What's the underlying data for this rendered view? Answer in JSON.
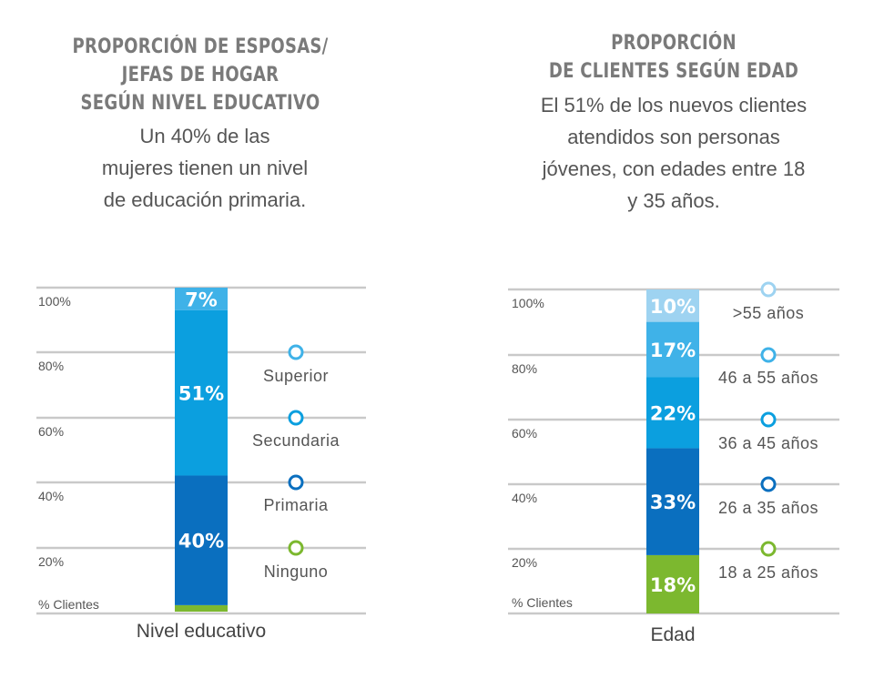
{
  "colors": {
    "grid": "#c9c9c9",
    "marker_fill": "#ffffff"
  },
  "chart_data": [
    {
      "type": "bar",
      "stacked": true,
      "title": "PROPORCIÓN DE ESPOSAS/\nJEFAS DE HOGAR\nSEGÚN NIVEL EDUCATIVO",
      "subtitle": "Un 40% de las\nmujeres tienen un nivel\nde educación primaria.",
      "xlabel": "Nivel educativo",
      "ylabel": "% Clientes",
      "ylim": [
        0,
        100
      ],
      "yticks": [
        "20%",
        "40%",
        "60%",
        "80%",
        "100%"
      ],
      "grid": true,
      "categories": [
        "Nivel educativo"
      ],
      "series": [
        {
          "name": "Ninguno",
          "values": [
            2
          ],
          "data_label": "",
          "color": "#7cb82f"
        },
        {
          "name": "Primaria",
          "values": [
            40
          ],
          "data_label": "40%",
          "color": "#0a6fbf"
        },
        {
          "name": "Secundaria",
          "values": [
            51
          ],
          "data_label": "51%",
          "color": "#0b9fdf"
        },
        {
          "name": "Superior",
          "values": [
            7
          ],
          "data_label": "7%",
          "color": "#3fb2e8"
        }
      ],
      "legend": [
        "Ninguno",
        "Primaria",
        "Secundaria",
        "Superior"
      ]
    },
    {
      "type": "bar",
      "stacked": true,
      "title": "PROPORCIÓN\nDE CLIENTES SEGÚN EDAD",
      "subtitle": "El 51% de los nuevos clientes\natendidos son personas\njóvenes, con edades entre 18\ny 35 años.",
      "xlabel": "Edad",
      "ylabel": "% Clientes",
      "ylim": [
        0,
        100
      ],
      "yticks": [
        "20%",
        "40%",
        "60%",
        "80%",
        "100%"
      ],
      "grid": true,
      "categories": [
        "Edad"
      ],
      "series": [
        {
          "name": "18 a 25 años",
          "values": [
            18
          ],
          "data_label": "18%",
          "color": "#7cb82f"
        },
        {
          "name": "26 a 35 años",
          "values": [
            33
          ],
          "data_label": "33%",
          "color": "#0a6fbf"
        },
        {
          "name": "36 a 45 años",
          "values": [
            22
          ],
          "data_label": "22%",
          "color": "#0b9fdf"
        },
        {
          "name": "46 a 55 años",
          "values": [
            17
          ],
          "data_label": "17%",
          "color": "#3fb2e8"
        },
        {
          "name": ">55 años",
          "values": [
            10
          ],
          "data_label": "10%",
          "color": "#9ed3f1"
        }
      ],
      "legend": [
        "18 a 25 años",
        "26 a 35 años",
        "36 a 45 años",
        "46 a 55 años",
        ">55 años"
      ]
    }
  ]
}
